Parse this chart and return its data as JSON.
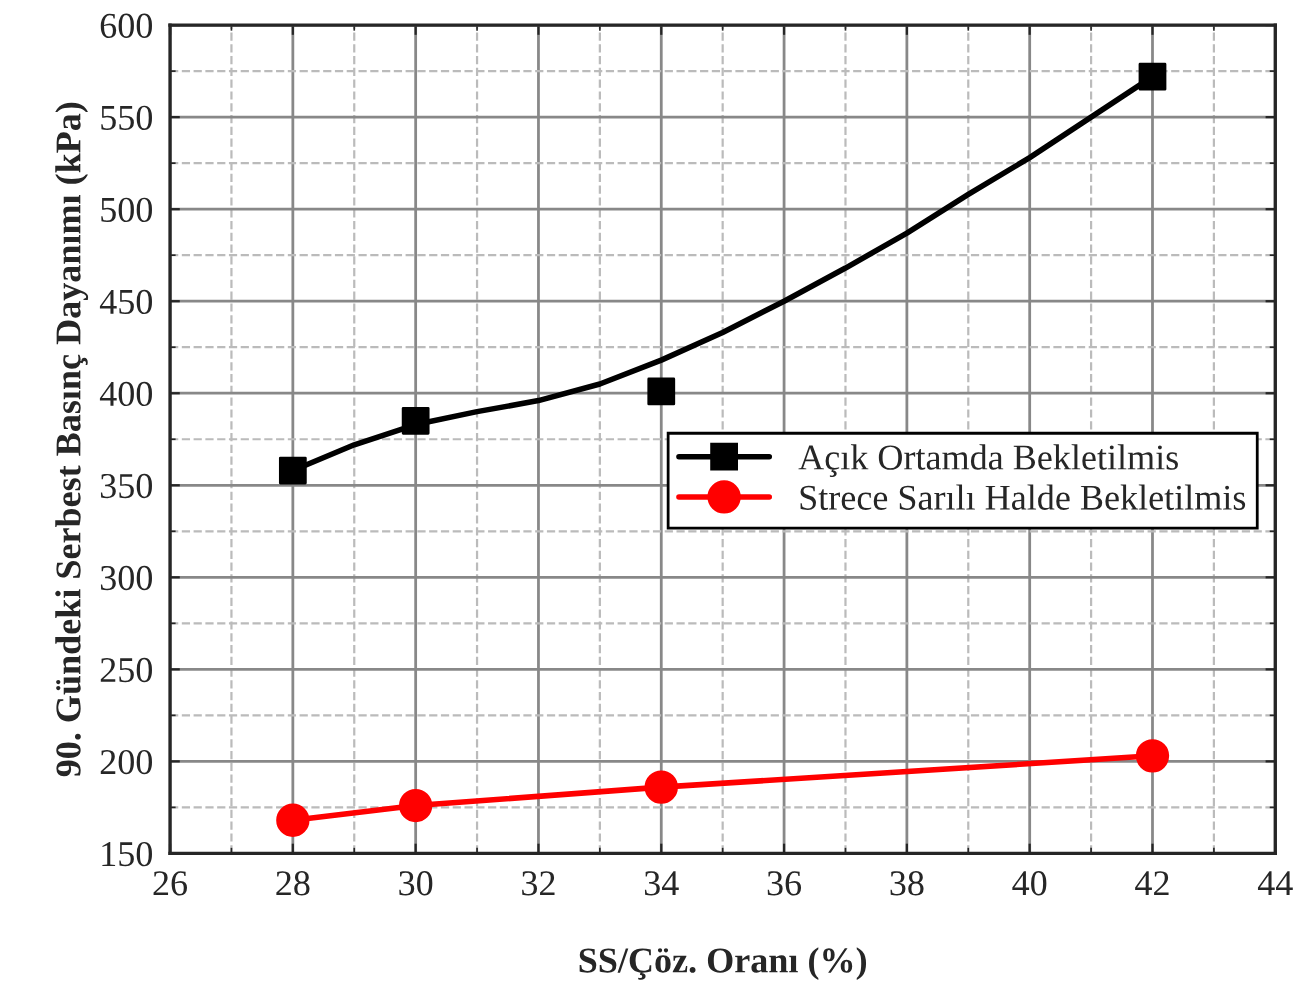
{
  "chart_data": {
    "type": "line",
    "xlabel": "SS/Çöz. Oranı (%)",
    "ylabel": "90. Gündeki Serbest Basınç Dayanımı (kPa)",
    "xlim": [
      26,
      44
    ],
    "xticks": [
      26,
      28,
      30,
      32,
      34,
      36,
      38,
      40,
      42,
      44
    ],
    "ylim": [
      150,
      600
    ],
    "yticks": [
      150,
      200,
      250,
      300,
      350,
      400,
      450,
      500,
      550,
      600
    ],
    "grid": true,
    "legend": "right",
    "series": [
      {
        "name": "Açık Ortamda Bekletilmis",
        "type": "scatter",
        "marker": "square",
        "color": "#000000",
        "x": [
          28,
          30,
          34,
          42
        ],
        "values": [
          358,
          385,
          401,
          572
        ]
      },
      {
        "type": "line",
        "marker": "none",
        "color": "#000000",
        "x": [
          28,
          29,
          30,
          31,
          32,
          33,
          34,
          35,
          36,
          37,
          38,
          39,
          40,
          41,
          42
        ],
        "values": [
          358,
          372,
          383,
          390,
          396,
          405,
          418,
          433,
          450,
          468,
          487,
          508,
          528,
          550,
          572
        ]
      },
      {
        "name": "Strece Sarılı Halde Bekletilmis",
        "marker": "circle",
        "color": "#ff0000",
        "x": [
          28,
          30,
          34,
          42
        ],
        "values": [
          168,
          176,
          186,
          203
        ]
      }
    ]
  }
}
